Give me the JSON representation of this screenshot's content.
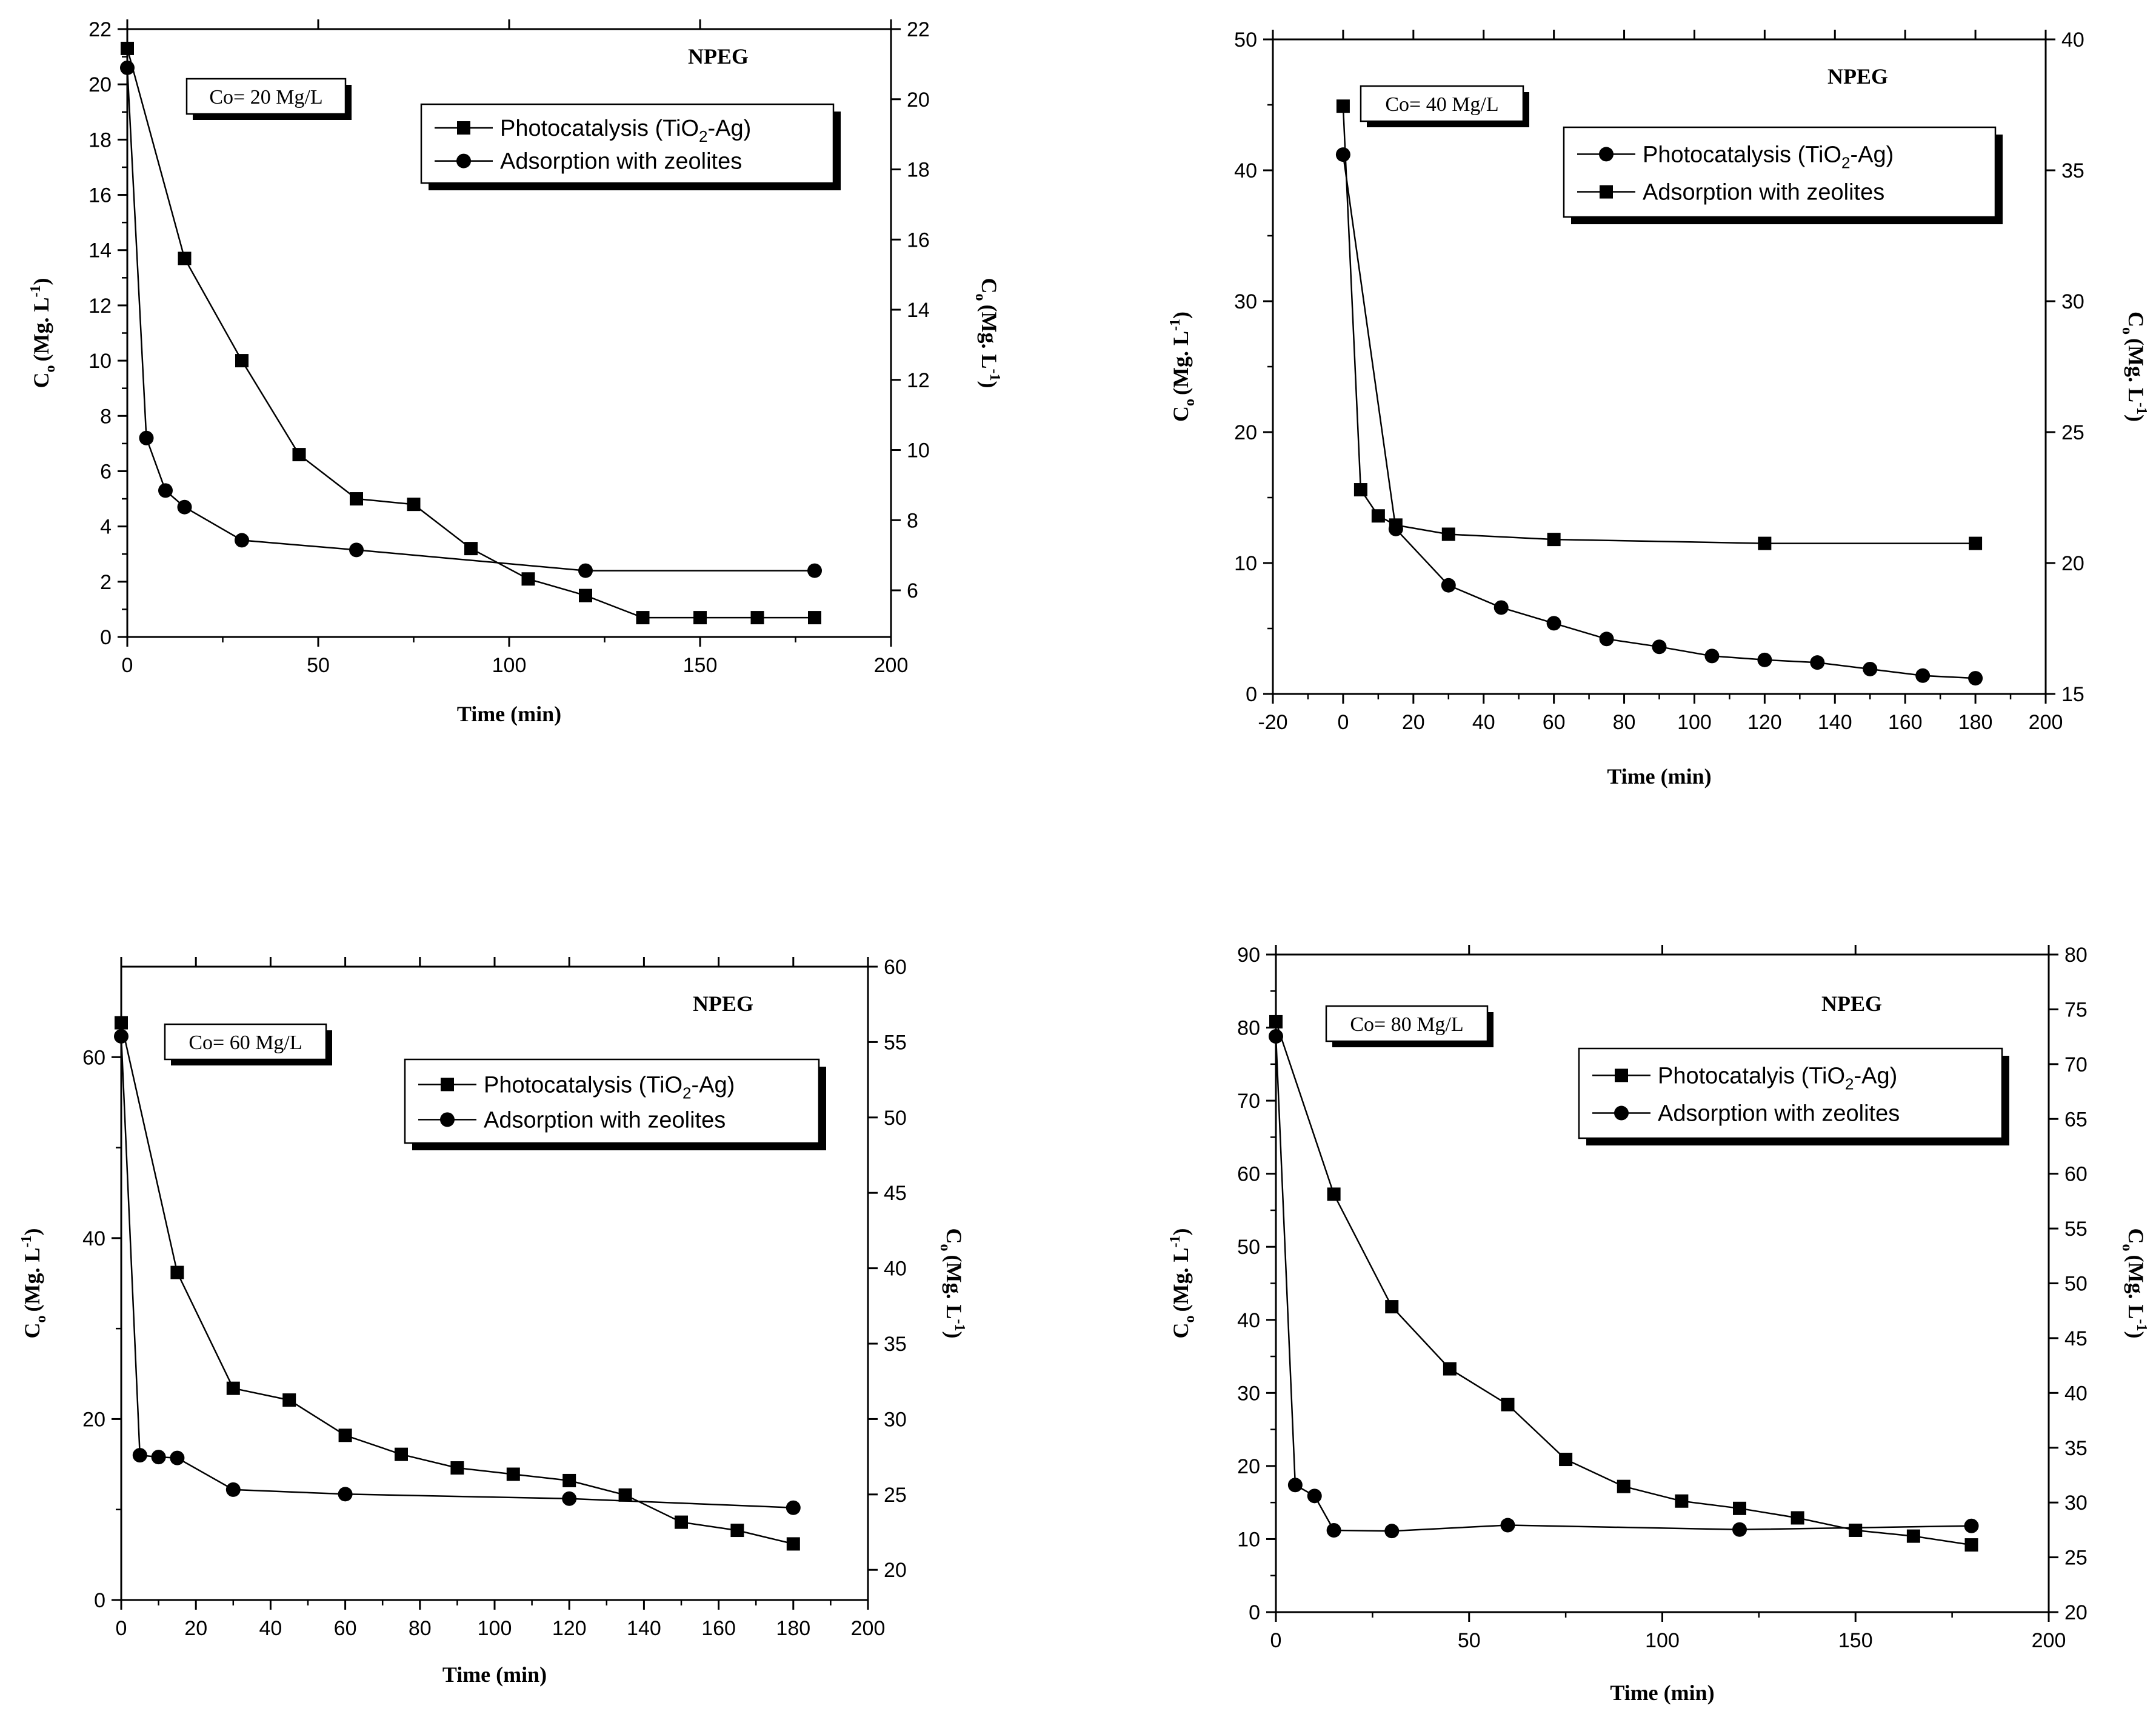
{
  "chart_data": [
    {
      "type": "line",
      "panel": "top-left",
      "tag": "NPEG",
      "concentration_label": "Co= 20 Mg/L",
      "xlabel": "Time (min)",
      "ylabel": "C",
      "ylabel_sub": "o",
      "ylabel_units": "(Mg. L",
      "ylabel_sup": "-1",
      "ylabel_close": ")",
      "xlim": [
        0,
        200
      ],
      "xticks": [
        "0",
        "50",
        "100",
        "150",
        "200"
      ],
      "ylim": [
        0,
        22
      ],
      "yticks": [
        "0",
        "2",
        "4",
        "6",
        "8",
        "10",
        "12",
        "14",
        "16",
        "18",
        "20",
        "22"
      ],
      "y2lim": [
        4.67,
        22
      ],
      "y2ticks": [
        "6",
        "8",
        "10",
        "12",
        "14",
        "16",
        "18",
        "20",
        "22"
      ],
      "legend_position": "top-right",
      "series": [
        {
          "name": "Photocatalysis (TiO2-Ag)",
          "label_main": "Photocatalysis (TiO",
          "label_sub": "2",
          "label_end": "-Ag)",
          "marker": "square",
          "x": [
            0,
            15,
            30,
            45,
            60,
            75,
            90,
            105,
            120,
            135,
            150,
            165,
            180
          ],
          "values": [
            21.3,
            13.7,
            10.0,
            6.6,
            5.0,
            4.8,
            3.2,
            2.1,
            1.5,
            0.7,
            0.7,
            0.7,
            0.7
          ]
        },
        {
          "name": "Adsorption with zeolites",
          "label_main": "Adsorption with zeolites",
          "marker": "circle",
          "x": [
            0,
            5,
            10,
            15,
            30,
            60,
            120,
            180
          ],
          "values": [
            20.6,
            7.2,
            5.3,
            4.7,
            3.5,
            3.15,
            2.4,
            2.4
          ]
        }
      ]
    },
    {
      "type": "line",
      "panel": "top-right",
      "tag": "NPEG",
      "concentration_label": "Co= 40 Mg/L",
      "xlabel": "Time (min)",
      "ylabel": "C",
      "ylabel_sub": "o",
      "ylabel_units": "(Mg. L",
      "ylabel_sup": "-1",
      "ylabel_close": ")",
      "xlim": [
        -20,
        200
      ],
      "xticks": [
        "-20",
        "0",
        "20",
        "40",
        "60",
        "80",
        "100",
        "120",
        "140",
        "160",
        "180",
        "200"
      ],
      "ylim": [
        0,
        50
      ],
      "yticks": [
        "0",
        "10",
        "20",
        "30",
        "40",
        "50"
      ],
      "y2lim": [
        15,
        40
      ],
      "y2ticks": [
        "15",
        "20",
        "25",
        "30",
        "35",
        "40"
      ],
      "legend_position": "top-right",
      "series": [
        {
          "name": "Photocatalysis (TiO2-Ag)",
          "label_main": "Photocatalysis (TiO",
          "label_sub": "2",
          "label_end": "-Ag)",
          "marker": "circle",
          "x": [
            0,
            15,
            30,
            45,
            60,
            75,
            90,
            105,
            120,
            135,
            150,
            165,
            180
          ],
          "values": [
            41.2,
            12.6,
            8.3,
            6.6,
            5.4,
            4.2,
            3.6,
            2.9,
            2.6,
            2.4,
            1.9,
            1.4,
            1.2
          ]
        },
        {
          "name": "Adsorption with zeolites",
          "label_main": "Adsorption with zeolites",
          "marker": "square",
          "x": [
            0,
            5,
            10,
            15,
            30,
            60,
            120,
            180
          ],
          "values": [
            44.9,
            15.6,
            13.6,
            12.9,
            12.2,
            11.8,
            11.5,
            11.5
          ]
        }
      ]
    },
    {
      "type": "line",
      "panel": "bottom-left",
      "tag": "NPEG",
      "concentration_label": "Co= 60 Mg/L",
      "xlabel": "Time (min)",
      "ylabel": "C",
      "ylabel_sub": "o",
      "ylabel_units": "(Mg. L",
      "ylabel_sup": "-1",
      "ylabel_close": ")",
      "xlim": [
        0,
        200
      ],
      "xticks": [
        "0",
        "20",
        "40",
        "60",
        "80",
        "100",
        "120",
        "140",
        "160",
        "180",
        "200"
      ],
      "ylim": [
        0,
        70
      ],
      "yticks": [
        "0",
        "20",
        "40",
        "60"
      ],
      "y2lim": [
        18,
        60
      ],
      "y2ticks": [
        "20",
        "25",
        "30",
        "35",
        "40",
        "45",
        "50",
        "55",
        "60"
      ],
      "legend_position": "top-right",
      "series": [
        {
          "name": "Photocatalysis (TiO2-Ag)",
          "label_main": "Photocatalysis (TiO",
          "label_sub": "2",
          "label_end": "-Ag)",
          "marker": "square",
          "x": [
            0,
            15,
            30,
            45,
            60,
            75,
            90,
            105,
            120,
            135,
            150,
            165,
            180
          ],
          "values": [
            63.8,
            36.2,
            23.4,
            22.1,
            18.2,
            16.1,
            14.6,
            13.9,
            13.2,
            11.6,
            8.6,
            7.7,
            6.2
          ]
        },
        {
          "name": "Adsorption with zeolites",
          "label_main": "Adsorption with zeolites",
          "marker": "circle",
          "x": [
            0,
            5,
            10,
            15,
            30,
            60,
            120,
            180
          ],
          "values": [
            62.3,
            16.0,
            15.8,
            15.7,
            12.2,
            11.7,
            11.2,
            10.2
          ]
        }
      ]
    },
    {
      "type": "line",
      "panel": "bottom-right",
      "tag": "NPEG",
      "concentration_label": "Co= 80 Mg/L",
      "xlabel": "Time (min)",
      "ylabel": "C",
      "ylabel_sub": "o",
      "ylabel_units": "(Mg. L",
      "ylabel_sup": "-1",
      "ylabel_close": ")",
      "xlim": [
        0,
        200
      ],
      "xticks": [
        "0",
        "50",
        "100",
        "150",
        "200"
      ],
      "ylim": [
        0,
        90
      ],
      "yticks": [
        "0",
        "10",
        "20",
        "30",
        "40",
        "50",
        "60",
        "70",
        "80",
        "90"
      ],
      "y2lim": [
        20,
        80
      ],
      "y2ticks": [
        "20",
        "25",
        "30",
        "35",
        "40",
        "45",
        "50",
        "55",
        "60",
        "65",
        "70",
        "75",
        "80"
      ],
      "legend_position": "top-right",
      "series": [
        {
          "name": "Photocatalyis (TiO2-Ag)",
          "label_main": "Photocatalyis (TiO",
          "label_sub": "2",
          "label_end": "-Ag)",
          "marker": "square",
          "x": [
            0,
            15,
            30,
            45,
            60,
            75,
            90,
            105,
            120,
            135,
            150,
            165,
            180
          ],
          "values": [
            80.8,
            57.2,
            41.8,
            33.3,
            28.4,
            20.9,
            17.2,
            15.2,
            14.2,
            12.9,
            11.2,
            10.4,
            9.2
          ]
        },
        {
          "name": "Adsorption with zeolites",
          "label_main": "Adsorption with zeolites",
          "marker": "circle",
          "x": [
            0,
            5,
            10,
            15,
            30,
            60,
            120,
            180
          ],
          "values": [
            78.8,
            17.4,
            15.9,
            11.2,
            11.1,
            11.9,
            11.3,
            11.8
          ]
        }
      ]
    }
  ]
}
